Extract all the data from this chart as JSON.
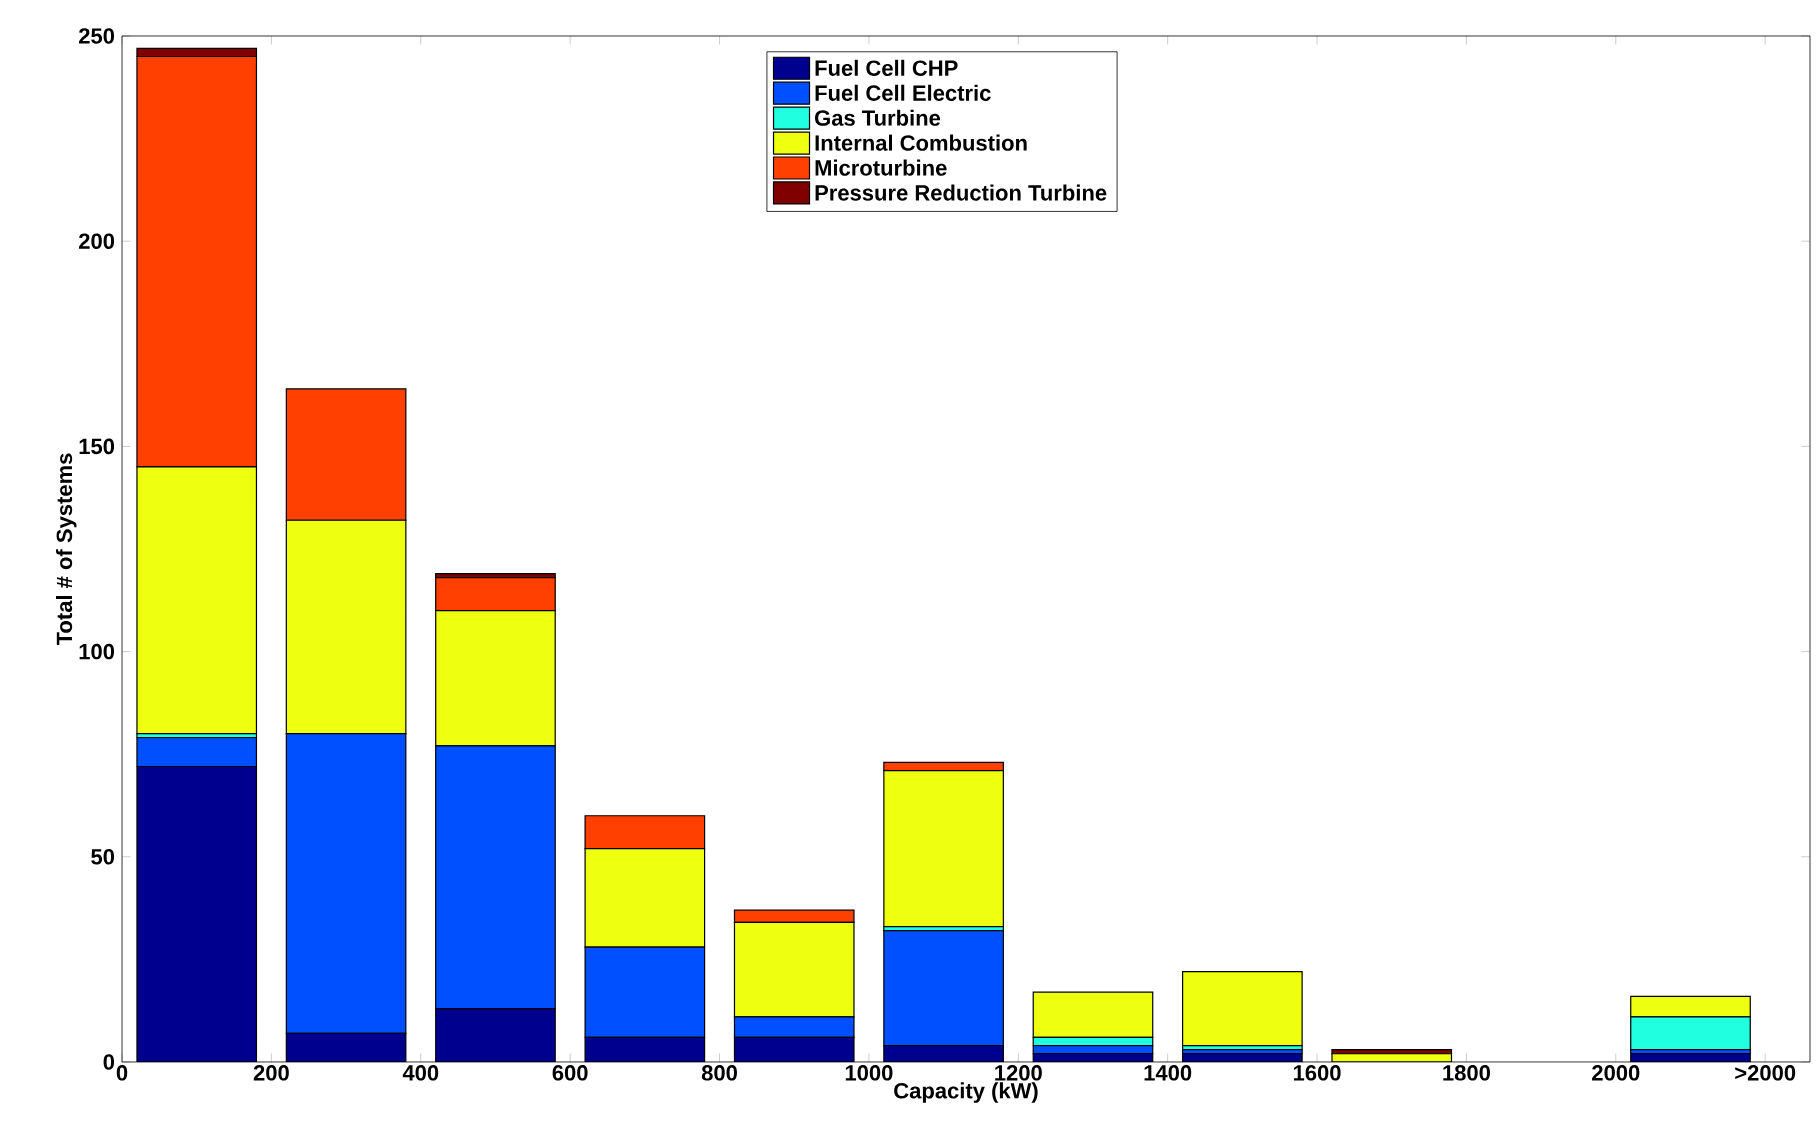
{
  "chart_data": {
    "type": "bar",
    "stacked": true,
    "xlabel": "Capacity (kW)",
    "ylabel": "Total # of Systems",
    "x": [
      100,
      300,
      500,
      700,
      900,
      1100,
      1300,
      1500,
      1700,
      1900,
      2100
    ],
    "series": [
      {
        "name": "Fuel Cell CHP",
        "color": "#00008f",
        "values": [
          72,
          7,
          13,
          6,
          6,
          4,
          2,
          2,
          0,
          0,
          2
        ]
      },
      {
        "name": "Fuel Cell Electric",
        "color": "#0050ff",
        "values": [
          7,
          73,
          64,
          22,
          5,
          28,
          2,
          1,
          0,
          0,
          1
        ]
      },
      {
        "name": "Gas Turbine",
        "color": "#20ffdf",
        "values": [
          1,
          0,
          0,
          0,
          0,
          1,
          2,
          1,
          0,
          0,
          8
        ]
      },
      {
        "name": "Internal Combustion",
        "color": "#efff10",
        "values": [
          65,
          52,
          33,
          24,
          23,
          38,
          11,
          18,
          2,
          0,
          5
        ]
      },
      {
        "name": "Microturbine",
        "color": "#ff4000",
        "values": [
          100,
          32,
          8,
          8,
          3,
          2,
          0,
          0,
          0,
          0,
          0
        ]
      },
      {
        "name": "Pressure Reduction Turbine",
        "color": "#800000",
        "values": [
          2,
          0,
          1,
          0,
          0,
          0,
          0,
          0,
          1,
          0,
          0
        ]
      }
    ],
    "xlim": [
      0,
      2260
    ],
    "ylim": [
      0,
      250
    ],
    "xticks": [
      0,
      200,
      400,
      600,
      800,
      1000,
      1200,
      1400,
      1600,
      1800,
      2000,
      {
        "value": 2200,
        "label": ">2000"
      }
    ],
    "yticks": [
      0,
      50,
      100,
      150,
      200,
      250
    ],
    "grid": false,
    "legend": "top"
  }
}
